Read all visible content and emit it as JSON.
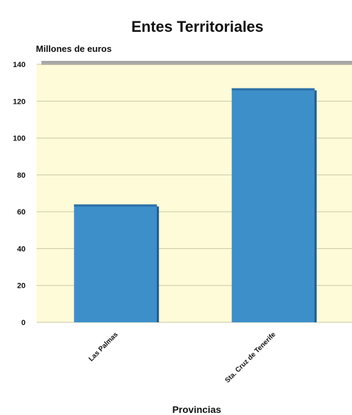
{
  "chart_data": {
    "type": "bar",
    "title": "Entes Territoriales",
    "ylabel": "Millones de euros",
    "xlabel": "Provincias",
    "categories": [
      "Las Palmas",
      "Sta. Cruz de Tenerife"
    ],
    "values": [
      64,
      127
    ],
    "ylim": [
      0,
      140
    ],
    "yticks": [
      0,
      20,
      40,
      60,
      80,
      100,
      120,
      140
    ],
    "grid": true,
    "legend": "none",
    "colors": {
      "bar": "#3d8fc9",
      "bar_top": "#2a6fa6",
      "bar_shadow": "#1e5a8a",
      "plot_background": "#fdfbd8",
      "gridline": "#c9c6a4",
      "top_wall": "#a6a6a6"
    }
  }
}
